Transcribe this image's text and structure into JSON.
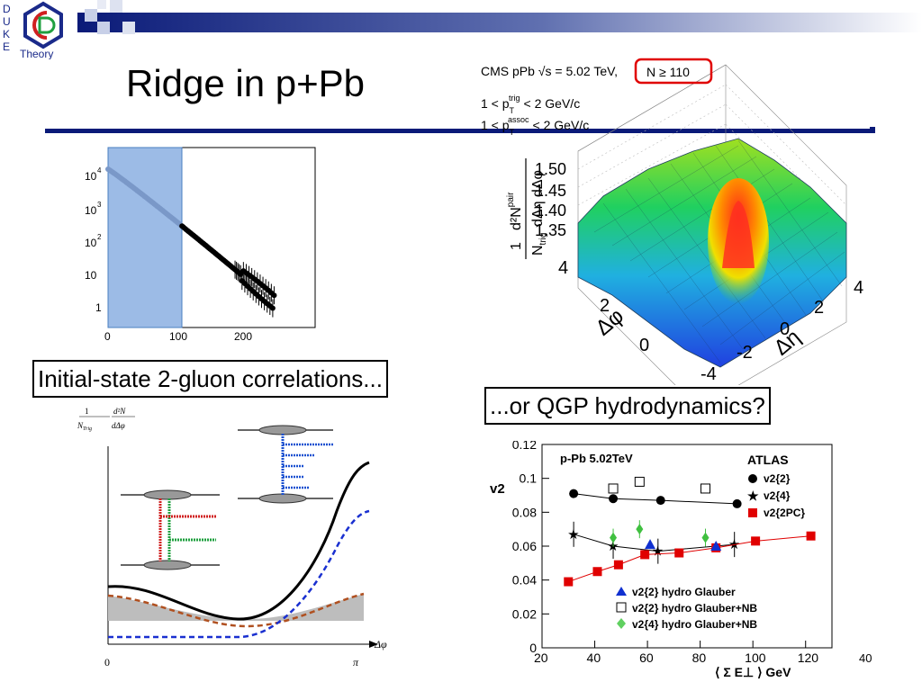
{
  "header": {
    "logo_vertical_text": "DUKE",
    "logo_text": "Theory",
    "title": "Ridge in p+Pb"
  },
  "captions": {
    "left": "Initial-state 2-gluon correlations...",
    "right": "...or QGP hydrodynamics?"
  },
  "slide_number": "40",
  "histogram": {
    "y_tick_labels": [
      "10",
      "10",
      "10",
      "10",
      "1"
    ],
    "y_tick_exponents": [
      "4",
      "3",
      "2",
      "",
      ""
    ],
    "x_tick_labels": [
      "0",
      "100",
      "200"
    ]
  },
  "cms_plot": {
    "header_line": "CMS pPb √s = 5.02 TeV,",
    "n_cut": "N ≥ 110",
    "cut1": "1 < p_T^trig < 2 GeV/c",
    "cut1_left": "1 < p",
    "cut1_sup": "trig",
    "cut1_sub": "T",
    "cut1_right": "< 2 GeV/c",
    "cut2_left": "1 < p",
    "cut2_sup": "assoc",
    "cut2_sub": "T",
    "cut2_right": "< 2 GeV/c",
    "z_ticks": [
      "1.50",
      "1.45",
      "1.40",
      "1.35"
    ],
    "phi_label": "Δφ",
    "eta_label": "Δη",
    "phi_ticks": [
      "4",
      "2",
      "0"
    ],
    "eta_ticks": [
      "4",
      "2",
      "0",
      "-2",
      "-4"
    ]
  },
  "cartoon_plot": {
    "x_label": "Δφ",
    "x_ticks": [
      "0",
      "π"
    ]
  },
  "chart_data": {
    "type": "scatter",
    "title": "p-Pb 5.02TeV",
    "brand": "ATLAS",
    "ylabel": "v2",
    "xlabel": "⟨ Σ E⊥ ⟩ GeV",
    "xlim": [
      20,
      130
    ],
    "ylim": [
      0,
      0.12
    ],
    "x_ticks": [
      "20",
      "40",
      "60",
      "80",
      "100",
      "120"
    ],
    "y_ticks": [
      "0",
      "0.02",
      "0.04",
      "0.06",
      "0.08",
      "0.1",
      "0.12"
    ],
    "legend_top": [
      "v2{2}",
      "v2{4}",
      "v2{2PC}"
    ],
    "legend_bottom": [
      "v2{2} hydro  Glauber",
      "v2{2} hydro  Glauber+NB",
      "v2{4} hydro  Glauber+NB"
    ],
    "series": [
      {
        "name": "v2{2}",
        "color": "#000000",
        "marker": "circle",
        "x": [
          32,
          47,
          65,
          94
        ],
        "y": [
          0.091,
          0.088,
          0.087,
          0.085
        ]
      },
      {
        "name": "v2{4}",
        "color": "#000000",
        "marker": "star",
        "x": [
          32,
          47,
          64,
          93
        ],
        "y": [
          0.067,
          0.06,
          0.057,
          0.061
        ]
      },
      {
        "name": "v2{2PC}",
        "color": "#e00000",
        "marker": "square",
        "x": [
          30,
          41,
          49,
          59,
          72,
          86,
          101,
          122
        ],
        "y": [
          0.039,
          0.045,
          0.049,
          0.055,
          0.056,
          0.059,
          0.063,
          0.066
        ]
      },
      {
        "name": "v2{2} hydro Glauber",
        "color": "#1030d0",
        "marker": "triangle",
        "x": [
          61,
          86
        ],
        "y": [
          0.061,
          0.06
        ]
      },
      {
        "name": "v2{2} hydro Glauber+NB",
        "color": "#000000",
        "marker": "open-square",
        "x": [
          47,
          57,
          82
        ],
        "y": [
          0.094,
          0.098,
          0.094
        ]
      },
      {
        "name": "v2{4} hydro Glauber+NB",
        "color": "#40c040",
        "marker": "diamond",
        "x": [
          47,
          57,
          82
        ],
        "y": [
          0.065,
          0.07,
          0.065
        ]
      }
    ]
  },
  "colors": {
    "banner_dark": "#0a1a78",
    "accent_red": "#e00000",
    "accent_blue": "#1030d0"
  }
}
